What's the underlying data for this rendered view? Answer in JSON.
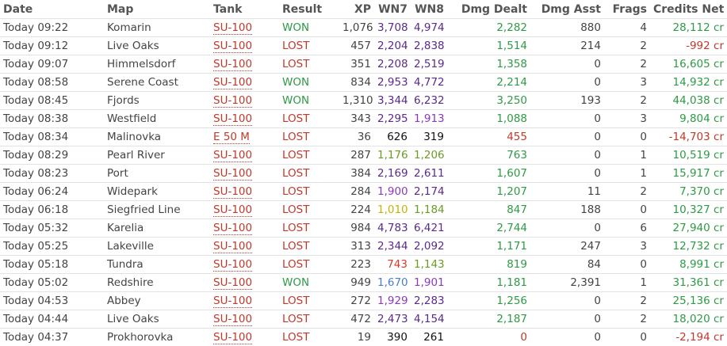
{
  "headers": {
    "date": "Date",
    "map": "Map",
    "tank": "Tank",
    "result": "Result",
    "xp": "XP",
    "wn7": "WN7",
    "wn8": "WN8",
    "dmg_dealt": "Dmg Dealt",
    "dmg_asst": "Dmg Asst",
    "frags": "Frags",
    "credits_net": "Credits Net"
  },
  "colors": {
    "won": "#2e9a45",
    "lost": "#c0392b",
    "header": "#555555"
  },
  "rows": [
    {
      "date": "Today 09:22",
      "map": "Komarin",
      "tank": "SU-100",
      "result": "WON",
      "xp": "1,076",
      "wn7": "3,708",
      "wn7c": "wr-purple",
      "wn8": "4,974",
      "wn8c": "wr-purple",
      "dmg": "2,282",
      "dmgc": "dmg",
      "asst": "880",
      "frags": "4",
      "credits": "28,112 cr",
      "cc": "pos"
    },
    {
      "date": "Today 09:12",
      "map": "Live Oaks",
      "tank": "SU-100",
      "result": "LOST",
      "xp": "457",
      "wn7": "2,204",
      "wn7c": "wr-purple",
      "wn8": "2,838",
      "wn8c": "wr-purple",
      "dmg": "1,514",
      "dmgc": "dmg",
      "asst": "214",
      "frags": "2",
      "credits": "-992 cr",
      "cc": "neg"
    },
    {
      "date": "Today 09:07",
      "map": "Himmelsdorf",
      "tank": "SU-100",
      "result": "LOST",
      "xp": "351",
      "wn7": "2,208",
      "wn7c": "wr-purple",
      "wn8": "2,519",
      "wn8c": "wr-purple",
      "dmg": "1,358",
      "dmgc": "dmg",
      "asst": "0",
      "frags": "2",
      "credits": "16,605 cr",
      "cc": "pos"
    },
    {
      "date": "Today 08:58",
      "map": "Serene Coast",
      "tank": "SU-100",
      "result": "WON",
      "xp": "834",
      "wn7": "2,953",
      "wn7c": "wr-purple",
      "wn8": "4,772",
      "wn8c": "wr-purple",
      "dmg": "2,214",
      "dmgc": "dmg",
      "asst": "0",
      "frags": "3",
      "credits": "14,932 cr",
      "cc": "pos"
    },
    {
      "date": "Today 08:45",
      "map": "Fjords",
      "tank": "SU-100",
      "result": "WON",
      "xp": "1,310",
      "wn7": "3,344",
      "wn7c": "wr-purple",
      "wn8": "6,232",
      "wn8c": "wr-purple",
      "dmg": "3,250",
      "dmgc": "dmg",
      "asst": "193",
      "frags": "2",
      "credits": "44,038 cr",
      "cc": "pos"
    },
    {
      "date": "Today 08:38",
      "map": "Westfield",
      "tank": "SU-100",
      "result": "LOST",
      "xp": "343",
      "wn7": "2,295",
      "wn7c": "wr-purple",
      "wn8": "1,913",
      "wn8c": "wr-violet",
      "dmg": "1,088",
      "dmgc": "dmg",
      "asst": "0",
      "frags": "3",
      "credits": "9,804 cr",
      "cc": "pos"
    },
    {
      "date": "Today 08:34",
      "map": "Malinovka",
      "tank": "E 50 M",
      "result": "LOST",
      "xp": "36",
      "wn7": "626",
      "wn7c": "wr-black",
      "wn8": "319",
      "wn8c": "wr-black",
      "dmg": "455",
      "dmgc": "dmg-red",
      "asst": "0",
      "frags": "0",
      "credits": "-14,703 cr",
      "cc": "neg"
    },
    {
      "date": "Today 08:29",
      "map": "Pearl River",
      "tank": "SU-100",
      "result": "LOST",
      "xp": "287",
      "wn7": "1,176",
      "wn7c": "wr-green",
      "wn8": "1,206",
      "wn8c": "wr-green",
      "dmg": "763",
      "dmgc": "dmg",
      "asst": "0",
      "frags": "1",
      "credits": "10,519 cr",
      "cc": "pos"
    },
    {
      "date": "Today 08:23",
      "map": "Port",
      "tank": "SU-100",
      "result": "LOST",
      "xp": "384",
      "wn7": "2,169",
      "wn7c": "wr-purple",
      "wn8": "2,611",
      "wn8c": "wr-purple",
      "dmg": "1,607",
      "dmgc": "dmg",
      "asst": "0",
      "frags": "1",
      "credits": "15,917 cr",
      "cc": "pos"
    },
    {
      "date": "Today 06:24",
      "map": "Widepark",
      "tank": "SU-100",
      "result": "LOST",
      "xp": "284",
      "wn7": "1,900",
      "wn7c": "wr-violet",
      "wn8": "2,174",
      "wn8c": "wr-purple",
      "dmg": "1,207",
      "dmgc": "dmg",
      "asst": "11",
      "frags": "2",
      "credits": "7,370 cr",
      "cc": "pos"
    },
    {
      "date": "Today 06:18",
      "map": "Siegfried Line",
      "tank": "SU-100",
      "result": "LOST",
      "xp": "224",
      "wn7": "1,010",
      "wn7c": "wr-yellow",
      "wn8": "1,184",
      "wn8c": "wr-green",
      "dmg": "847",
      "dmgc": "dmg",
      "asst": "188",
      "frags": "0",
      "credits": "10,327 cr",
      "cc": "pos"
    },
    {
      "date": "Today 05:32",
      "map": "Karelia",
      "tank": "SU-100",
      "result": "LOST",
      "xp": "984",
      "wn7": "4,783",
      "wn7c": "wr-purple",
      "wn8": "6,421",
      "wn8c": "wr-purple",
      "dmg": "2,744",
      "dmgc": "dmg",
      "asst": "0",
      "frags": "6",
      "credits": "27,940 cr",
      "cc": "pos"
    },
    {
      "date": "Today 05:25",
      "map": "Lakeville",
      "tank": "SU-100",
      "result": "LOST",
      "xp": "313",
      "wn7": "2,344",
      "wn7c": "wr-purple",
      "wn8": "2,092",
      "wn8c": "wr-purple",
      "dmg": "1,171",
      "dmgc": "dmg",
      "asst": "247",
      "frags": "3",
      "credits": "12,732 cr",
      "cc": "pos"
    },
    {
      "date": "Today 05:18",
      "map": "Tundra",
      "tank": "SU-100",
      "result": "LOST",
      "xp": "223",
      "wn7": "743",
      "wn7c": "wr-red",
      "wn8": "1,143",
      "wn8c": "wr-green",
      "dmg": "819",
      "dmgc": "dmg",
      "asst": "84",
      "frags": "0",
      "credits": "8,991 cr",
      "cc": "pos"
    },
    {
      "date": "Today 05:02",
      "map": "Redshire",
      "tank": "SU-100",
      "result": "WON",
      "xp": "949",
      "wn7": "1,670",
      "wn7c": "wr-blue",
      "wn8": "1,901",
      "wn8c": "wr-violet",
      "dmg": "1,181",
      "dmgc": "dmg",
      "asst": "2,391",
      "frags": "1",
      "credits": "31,361 cr",
      "cc": "pos"
    },
    {
      "date": "Today 04:53",
      "map": "Abbey",
      "tank": "SU-100",
      "result": "LOST",
      "xp": "272",
      "wn7": "1,929",
      "wn7c": "wr-violet",
      "wn8": "2,283",
      "wn8c": "wr-purple",
      "dmg": "1,256",
      "dmgc": "dmg",
      "asst": "0",
      "frags": "2",
      "credits": "25,136 cr",
      "cc": "pos"
    },
    {
      "date": "Today 04:44",
      "map": "Live Oaks",
      "tank": "SU-100",
      "result": "LOST",
      "xp": "472",
      "wn7": "2,473",
      "wn7c": "wr-purple",
      "wn8": "4,154",
      "wn8c": "wr-purple",
      "dmg": "2,187",
      "dmgc": "dmg",
      "asst": "0",
      "frags": "2",
      "credits": "18,020 cr",
      "cc": "pos"
    },
    {
      "date": "Today 04:37",
      "map": "Prokhorovka",
      "tank": "SU-100",
      "result": "LOST",
      "xp": "19",
      "wn7": "390",
      "wn7c": "wr-black",
      "wn8": "261",
      "wn8c": "wr-black",
      "dmg": "0",
      "dmgc": "dmg-red",
      "asst": "0",
      "frags": "0",
      "credits": "-2,194 cr",
      "cc": "neg"
    }
  ]
}
